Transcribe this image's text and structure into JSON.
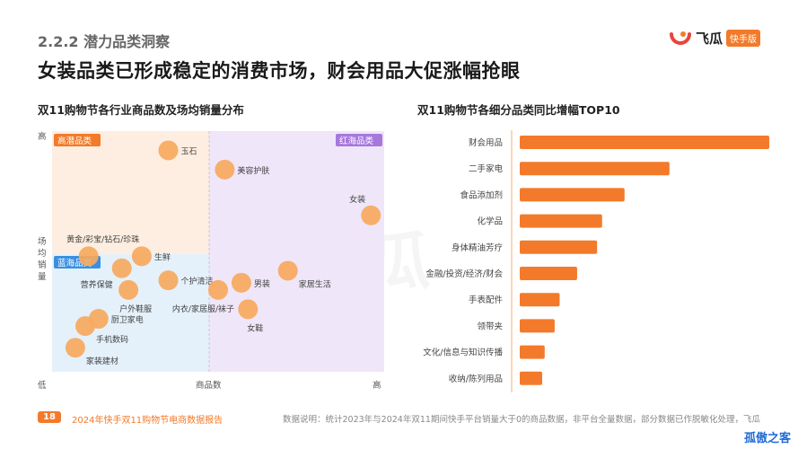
{
  "header": {
    "section": "2.2.2 潜力品类洞察",
    "headline": "女装品类已形成稳定的消费市场，财会用品大促涨幅抢眼",
    "logo_brand": "飞瓜",
    "logo_badge": "快手版"
  },
  "watermark": "飞瓜",
  "footer": {
    "page": "18",
    "report": "2024年快手双11购物节电商数据报告",
    "note": "数据说明：统计2023年与2024年双11期间快手平台销量大于0的商品数据，非平台全量数据，部分数据已作脱敏化处理，飞瓜"
  },
  "corner_mark": "孤傲之客",
  "chart_data": [
    {
      "type": "scatter",
      "title": "双11购物节各行业商品数及场均销量分布",
      "xlabel": "商品数",
      "ylabel": "场均销量",
      "x_low": "低",
      "x_high": "高",
      "y_low": "低",
      "y_high": "高",
      "xlim": [
        0,
        100
      ],
      "ylim": [
        0,
        100
      ],
      "quadrants": [
        {
          "name": "高潜品类",
          "color": "#fdeee1"
        },
        {
          "name": "红海品类",
          "color": "#efe6f9"
        },
        {
          "name": "蓝海品类",
          "color": "#e4f1fb"
        }
      ],
      "points": [
        {
          "label": "玉石",
          "x": 35,
          "y": 92
        },
        {
          "label": "美容护肤",
          "x": 52,
          "y": 84
        },
        {
          "label": "女装",
          "x": 96,
          "y": 65
        },
        {
          "label": "黄金/彩宝/钻石/珍珠",
          "x": 11,
          "y": 48
        },
        {
          "label": "生鲜",
          "x": 27,
          "y": 48
        },
        {
          "label": "营养保健",
          "x": 21,
          "y": 43
        },
        {
          "label": "个护清洁",
          "x": 35,
          "y": 38
        },
        {
          "label": "男装",
          "x": 57,
          "y": 37
        },
        {
          "label": "家居生活",
          "x": 71,
          "y": 42
        },
        {
          "label": "户外鞋服",
          "x": 23,
          "y": 34
        },
        {
          "label": "内衣/家居服/袜子",
          "x": 50,
          "y": 34
        },
        {
          "label": "女鞋",
          "x": 59,
          "y": 26
        },
        {
          "label": "厨卫家电",
          "x": 14,
          "y": 22
        },
        {
          "label": "手机数码",
          "x": 10,
          "y": 19
        },
        {
          "label": "家装建材",
          "x": 7,
          "y": 10
        }
      ]
    },
    {
      "type": "bar",
      "orientation": "horizontal",
      "title": "双11购物节各细分品类同比增幅TOP10",
      "categories": [
        "财会用品",
        "二手家电",
        "食品添加剂",
        "化学品",
        "身体精油芳疗",
        "金融/投资/经济/财会",
        "手表配件",
        "领带夹",
        "文化/信息与知识传播",
        "收纳/陈列用品"
      ],
      "values": [
        100,
        60,
        42,
        33,
        31,
        23,
        16,
        14,
        10,
        9
      ],
      "bar_color": "#f37a2a"
    }
  ]
}
